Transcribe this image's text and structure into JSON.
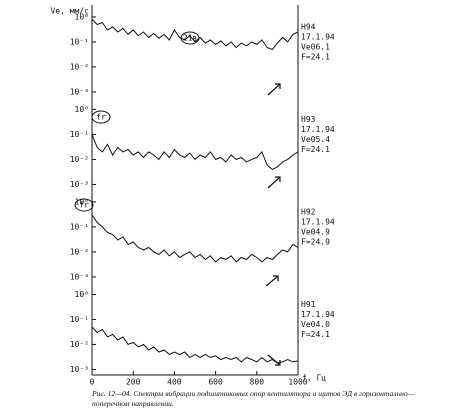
{
  "chart_data": [
    {
      "type": "line",
      "ylabel": "Ve, мм/с",
      "log_y": true,
      "color": "#111111",
      "annotation": "21в",
      "info": [
        "H94",
        "17.1.94",
        "Ve06.1",
        "F=24.1"
      ],
      "xlim": [
        0,
        1000
      ],
      "ylim": [
        0.0006,
        3
      ],
      "yticks": [
        {
          "value": 1,
          "label": "10⁰"
        },
        {
          "value": 0.1,
          "label": "10⁻¹"
        },
        {
          "value": 0.01,
          "label": "10⁻²"
        },
        {
          "value": 0.001,
          "label": "10⁻³"
        }
      ],
      "x": [
        0,
        25,
        50,
        75,
        100,
        125,
        150,
        175,
        200,
        225,
        250,
        275,
        300,
        325,
        350,
        375,
        400,
        425,
        450,
        475,
        500,
        525,
        550,
        575,
        600,
        625,
        650,
        675,
        700,
        725,
        750,
        775,
        800,
        825,
        850,
        875,
        900,
        925,
        950,
        975,
        1000
      ],
      "values": [
        0.8,
        0.5,
        0.6,
        0.3,
        0.4,
        0.25,
        0.35,
        0.2,
        0.3,
        0.18,
        0.25,
        0.15,
        0.22,
        0.14,
        0.2,
        0.12,
        0.3,
        0.15,
        0.12,
        0.18,
        0.1,
        0.15,
        0.09,
        0.12,
        0.08,
        0.11,
        0.07,
        0.1,
        0.06,
        0.09,
        0.07,
        0.1,
        0.08,
        0.12,
        0.06,
        0.05,
        0.09,
        0.15,
        0.1,
        0.2,
        0.25
      ]
    },
    {
      "type": "line",
      "log_y": true,
      "color": "#111111",
      "annotation": "fr",
      "info": [
        "H93",
        "17.1.94",
        "Ve05.4",
        "F=24.1"
      ],
      "xlim": [
        0,
        1000
      ],
      "ylim": [
        0.0006,
        3
      ],
      "yticks": [
        {
          "value": 1,
          "label": "10⁰"
        },
        {
          "value": 0.1,
          "label": "10⁻¹"
        },
        {
          "value": 0.01,
          "label": "10⁻²"
        },
        {
          "value": 0.001,
          "label": "10⁻³"
        }
      ],
      "x": [
        0,
        25,
        50,
        75,
        100,
        125,
        150,
        175,
        200,
        225,
        250,
        275,
        300,
        325,
        350,
        375,
        400,
        425,
        450,
        475,
        500,
        525,
        550,
        575,
        600,
        625,
        650,
        675,
        700,
        725,
        750,
        775,
        800,
        825,
        850,
        875,
        900,
        925,
        950,
        975,
        1000
      ],
      "values": [
        0.1,
        0.03,
        0.02,
        0.04,
        0.015,
        0.03,
        0.02,
        0.025,
        0.015,
        0.02,
        0.012,
        0.02,
        0.015,
        0.01,
        0.02,
        0.012,
        0.025,
        0.015,
        0.012,
        0.018,
        0.01,
        0.015,
        0.012,
        0.02,
        0.01,
        0.012,
        0.008,
        0.015,
        0.01,
        0.012,
        0.008,
        0.01,
        0.012,
        0.02,
        0.006,
        0.004,
        0.005,
        0.008,
        0.01,
        0.015,
        0.02
      ]
    },
    {
      "type": "line",
      "log_y": true,
      "color": "#111111",
      "annotation": "fr",
      "info": [
        "H92",
        "17.1.94",
        "Ve04.9",
        "F=24.9"
      ],
      "xlim": [
        0,
        1000
      ],
      "ylim": [
        0.0006,
        3
      ],
      "yticks": [
        {
          "value": 1,
          "label": "10⁰"
        },
        {
          "value": 0.1,
          "label": "10⁻¹"
        },
        {
          "value": 0.01,
          "label": "10⁻²"
        },
        {
          "value": 0.001,
          "label": "10⁻³"
        }
      ],
      "x": [
        0,
        25,
        50,
        75,
        100,
        125,
        150,
        175,
        200,
        225,
        250,
        275,
        300,
        325,
        350,
        375,
        400,
        425,
        450,
        475,
        500,
        525,
        550,
        575,
        600,
        625,
        650,
        675,
        700,
        725,
        750,
        775,
        800,
        825,
        850,
        875,
        900,
        925,
        950,
        975,
        1000
      ],
      "values": [
        0.3,
        0.15,
        0.1,
        0.06,
        0.05,
        0.03,
        0.04,
        0.02,
        0.025,
        0.015,
        0.012,
        0.015,
        0.01,
        0.008,
        0.012,
        0.007,
        0.01,
        0.006,
        0.008,
        0.01,
        0.006,
        0.008,
        0.005,
        0.007,
        0.004,
        0.006,
        0.005,
        0.007,
        0.004,
        0.006,
        0.005,
        0.008,
        0.006,
        0.004,
        0.006,
        0.005,
        0.008,
        0.012,
        0.01,
        0.02,
        0.015
      ]
    },
    {
      "type": "line",
      "log_y": true,
      "color": "#111111",
      "info": [
        "H91",
        "17.1.94",
        "Ve04.0",
        "F=24.1"
      ],
      "xlabel": "f, Гц",
      "xlim": [
        0,
        1000
      ],
      "ylim": [
        0.0006,
        3
      ],
      "xticks": [
        0,
        200,
        400,
        600,
        800,
        1000
      ],
      "yticks": [
        {
          "value": 1,
          "label": "10⁰"
        },
        {
          "value": 0.1,
          "label": "10⁻¹"
        },
        {
          "value": 0.01,
          "label": "10⁻²"
        },
        {
          "value": 0.001,
          "label": "10⁻³"
        }
      ],
      "x": [
        0,
        25,
        50,
        75,
        100,
        125,
        150,
        175,
        200,
        225,
        250,
        275,
        300,
        325,
        350,
        375,
        400,
        425,
        450,
        475,
        500,
        525,
        550,
        575,
        600,
        625,
        650,
        675,
        700,
        725,
        750,
        775,
        800,
        825,
        850,
        875,
        900,
        925,
        950,
        975,
        1000
      ],
      "values": [
        0.05,
        0.03,
        0.04,
        0.02,
        0.025,
        0.015,
        0.02,
        0.01,
        0.012,
        0.008,
        0.01,
        0.006,
        0.008,
        0.005,
        0.006,
        0.004,
        0.005,
        0.004,
        0.005,
        0.003,
        0.004,
        0.003,
        0.004,
        0.003,
        0.0035,
        0.0025,
        0.003,
        0.0025,
        0.003,
        0.002,
        0.003,
        0.0025,
        0.002,
        0.003,
        0.002,
        0.0025,
        0.0018,
        0.002,
        0.0025,
        0.002,
        0.0022
      ]
    }
  ],
  "caption": [
    "Рис. 12—04. Спектры вибрации подшипниковых опор вентилятора и щитов ЭД в горизонтально—",
    "поперечном направлении."
  ]
}
